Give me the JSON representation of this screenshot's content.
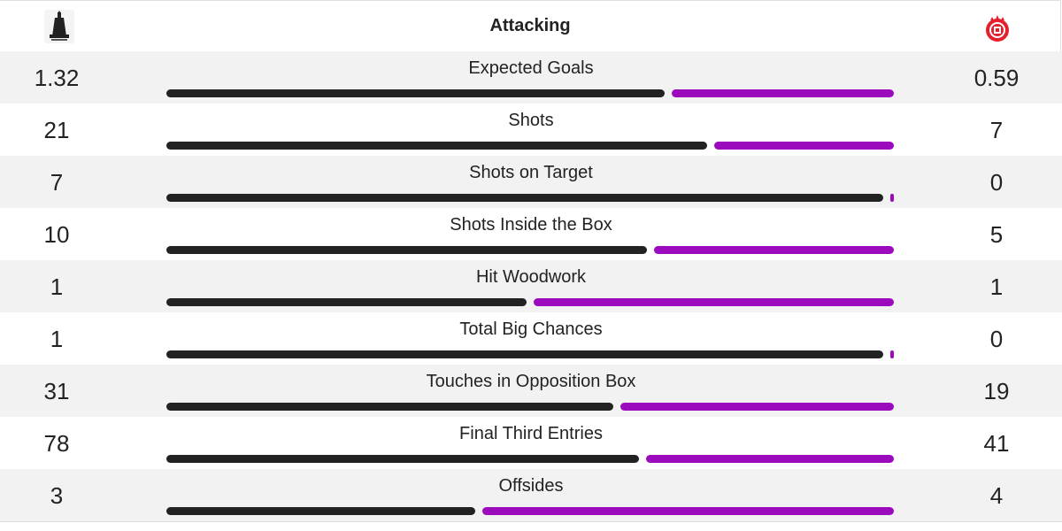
{
  "header": {
    "title": "Attacking",
    "home_crest_icon": "falkirk-crest-icon",
    "away_crest_icon": "aberdeen-crest-icon"
  },
  "colors": {
    "home_bar": "#222222",
    "away_bar": "#9b0bbd",
    "alt_row": "#f2f2f2"
  },
  "stats": [
    {
      "label": "Expected Goals",
      "home": "1.32",
      "away": "0.59",
      "home_value": 1.32,
      "away_value": 0.59
    },
    {
      "label": "Shots",
      "home": "21",
      "away": "7",
      "home_value": 21,
      "away_value": 7
    },
    {
      "label": "Shots on Target",
      "home": "7",
      "away": "0",
      "home_value": 7,
      "away_value": 0
    },
    {
      "label": "Shots Inside the Box",
      "home": "10",
      "away": "5",
      "home_value": 10,
      "away_value": 5
    },
    {
      "label": "Hit Woodwork",
      "home": "1",
      "away": "1",
      "home_value": 1,
      "away_value": 1
    },
    {
      "label": "Total Big Chances",
      "home": "1",
      "away": "0",
      "home_value": 1,
      "away_value": 0
    },
    {
      "label": "Touches in Opposition Box",
      "home": "31",
      "away": "19",
      "home_value": 31,
      "away_value": 19
    },
    {
      "label": "Final Third Entries",
      "home": "78",
      "away": "41",
      "home_value": 78,
      "away_value": 41
    },
    {
      "label": "Offsides",
      "home": "3",
      "away": "4",
      "home_value": 3,
      "away_value": 4
    }
  ]
}
